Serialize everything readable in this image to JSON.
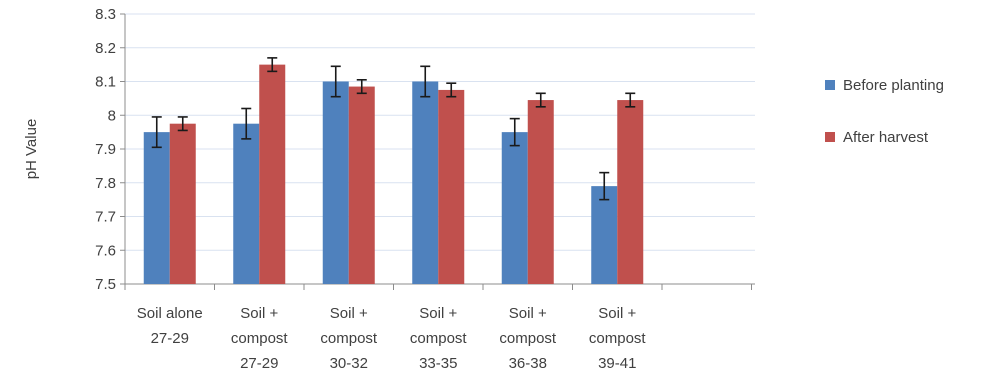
{
  "chart_data": {
    "type": "bar",
    "title": "",
    "xlabel": "",
    "ylabel": "pH Value",
    "ylim": [
      7.5,
      8.3
    ],
    "yticks": [
      "7.5",
      "7.6",
      "7.7",
      "7.8",
      "7.9",
      "8",
      "8.1",
      "8.2",
      "8.3"
    ],
    "grid": true,
    "legend_position": "right",
    "categories": [
      [
        "Soil alone",
        "27-29"
      ],
      [
        "Soil +",
        "compost",
        "27-29"
      ],
      [
        "Soil +",
        "compost",
        "30-32"
      ],
      [
        "Soil +",
        "compost",
        "33-35"
      ],
      [
        "Soil +",
        "compost",
        "36-38"
      ],
      [
        "Soil +",
        "compost",
        "39-41"
      ]
    ],
    "series": [
      {
        "name": "Before planting",
        "color": "#4f81bd",
        "values": [
          7.95,
          7.975,
          8.1,
          8.1,
          7.95,
          7.79
        ],
        "errors": [
          0.045,
          0.045,
          0.045,
          0.045,
          0.04,
          0.04
        ]
      },
      {
        "name": "After harvest",
        "color": "#c0504d",
        "values": [
          7.975,
          8.15,
          8.085,
          8.075,
          8.045,
          8.045
        ],
        "errors": [
          0.02,
          0.02,
          0.02,
          0.02,
          0.02,
          0.02
        ]
      }
    ]
  }
}
